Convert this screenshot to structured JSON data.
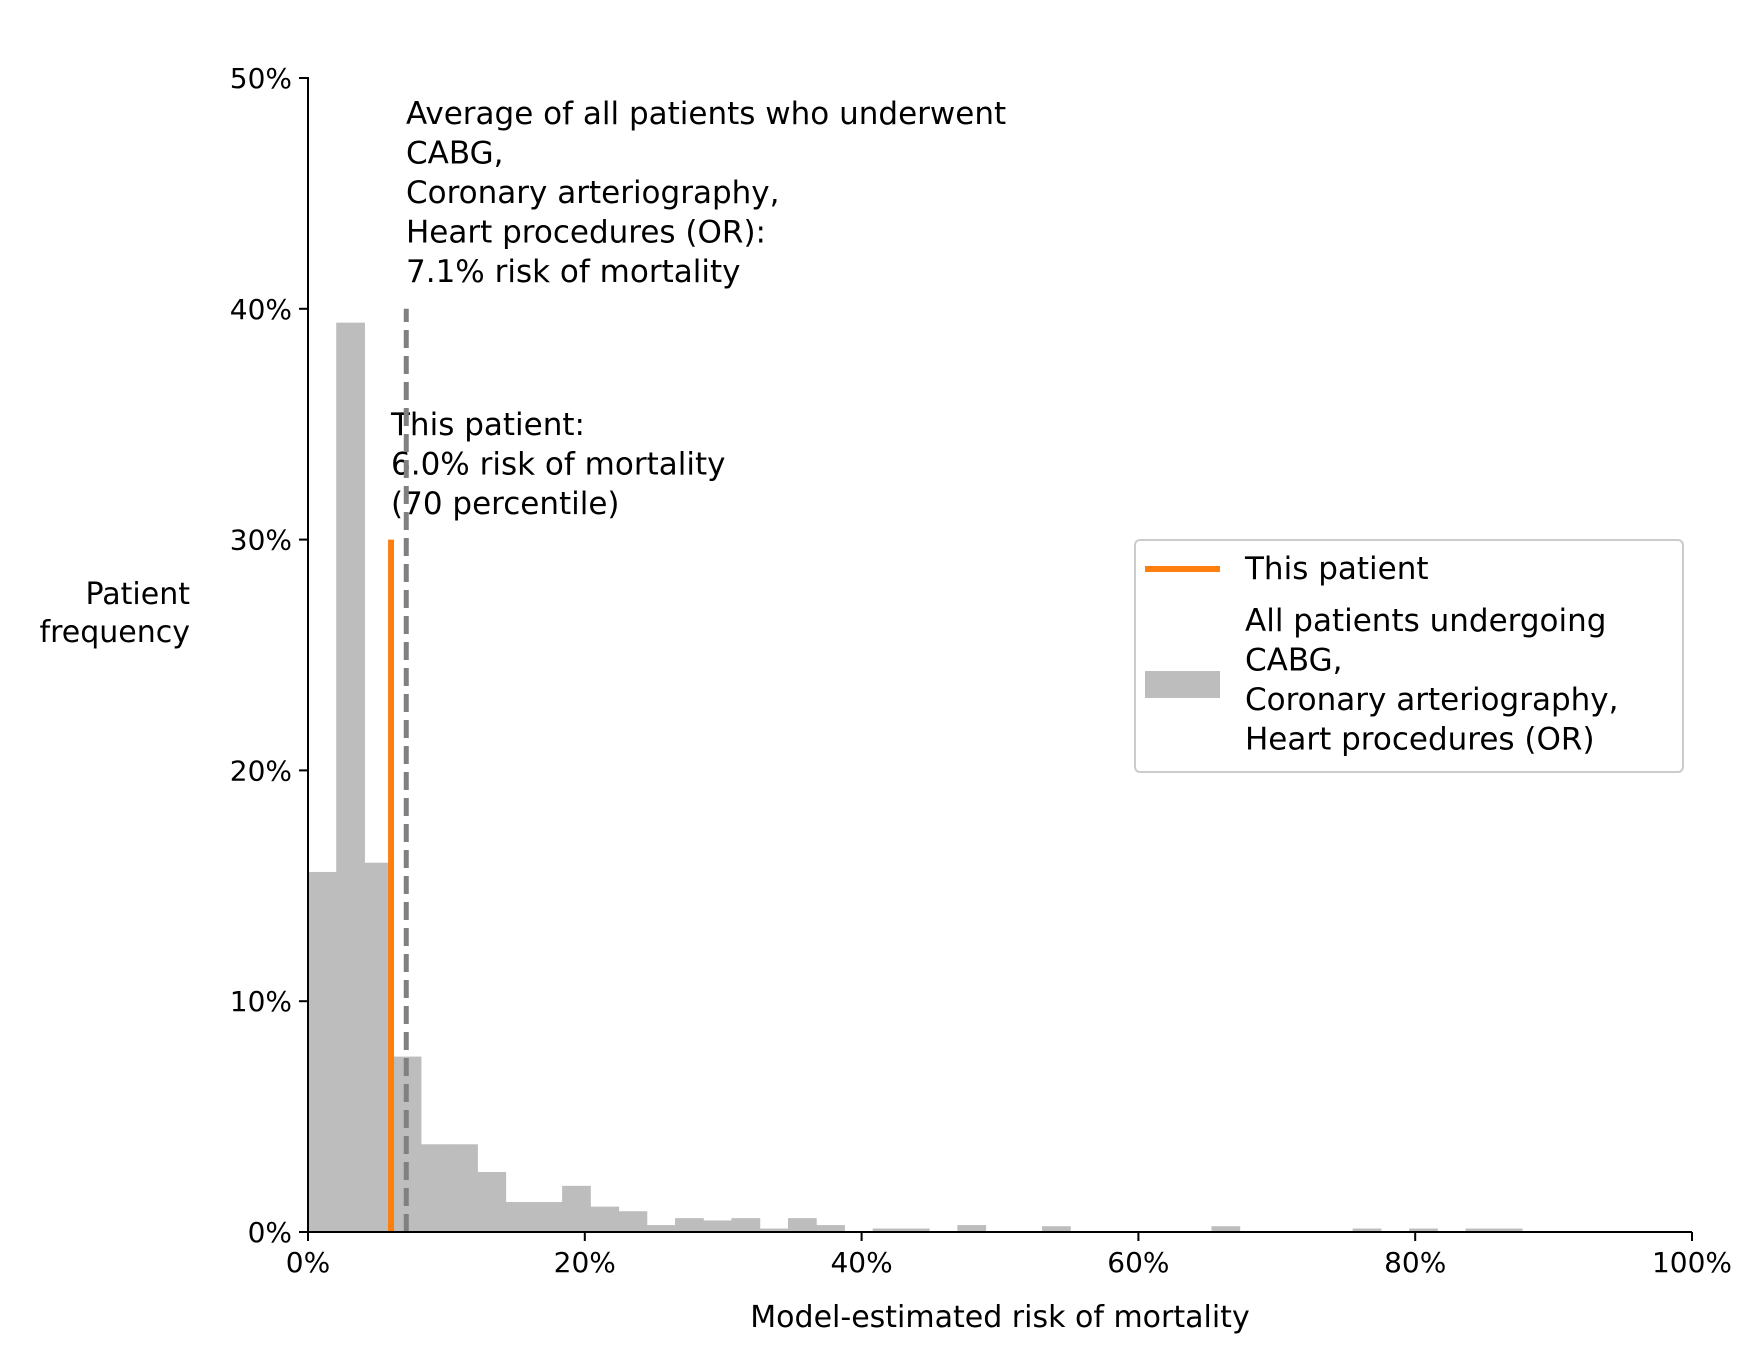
{
  "chart_data": {
    "type": "bar",
    "xlabel": "Model-estimated risk of mortality",
    "ylabel_lines": [
      "Patient",
      "frequency"
    ],
    "xlim": [
      0,
      100
    ],
    "ylim": [
      0,
      50
    ],
    "x_ticks": [
      0,
      20,
      40,
      60,
      80,
      100
    ],
    "y_ticks": [
      0,
      10,
      20,
      30,
      40,
      50
    ],
    "x_tick_labels": [
      "0%",
      "20%",
      "40%",
      "60%",
      "80%",
      "100%"
    ],
    "y_tick_labels": [
      "0%",
      "10%",
      "20%",
      "30%",
      "40%",
      "50%"
    ],
    "grid": false,
    "bin_width": 2.04,
    "histogram": {
      "name": "All patients undergoing CABG, Coronary arteriography, Heart procedures (OR)",
      "color": "#bdbdbd",
      "bins_start": [
        0,
        2.04,
        4.08,
        6.12,
        8.16,
        10.2,
        12.24,
        14.28,
        16.32,
        18.36,
        20.4,
        22.44,
        24.48,
        26.52,
        28.56,
        30.6,
        32.64,
        34.68,
        36.72,
        40.8,
        42.84,
        46.92,
        53.04,
        65.28,
        75.48,
        79.56,
        83.64,
        85.68
      ],
      "values": [
        15.6,
        39.4,
        16.0,
        7.6,
        3.8,
        3.8,
        2.6,
        1.3,
        1.3,
        2.0,
        1.1,
        0.9,
        0.3,
        0.6,
        0.5,
        0.6,
        0.15,
        0.6,
        0.3,
        0.15,
        0.15,
        0.3,
        0.25,
        0.25,
        0.15,
        0.15,
        0.15,
        0.15
      ]
    },
    "patient": {
      "name": "This patient",
      "value": 6.0,
      "height": 30,
      "color": "#ff7f0e",
      "annotation_lines": [
        "This patient:",
        "6.0% risk of mortality",
        "(70 percentile)"
      ]
    },
    "average": {
      "value": 7.1,
      "height": 40,
      "color": "#808080",
      "style": "dashed",
      "annotation_lines": [
        "Average of all patients who underwent",
        "CABG,",
        "Coronary arteriography,",
        "Heart procedures (OR):",
        "7.1% risk of mortality"
      ]
    },
    "legend": {
      "position": "center-right",
      "entries": [
        {
          "label_lines": [
            "This patient"
          ],
          "kind": "line",
          "color": "#ff7f0e"
        },
        {
          "label_lines": [
            "All patients undergoing",
            "CABG,",
            "Coronary arteriography,",
            "Heart procedures (OR)"
          ],
          "kind": "patch",
          "color": "#bdbdbd"
        }
      ]
    }
  }
}
